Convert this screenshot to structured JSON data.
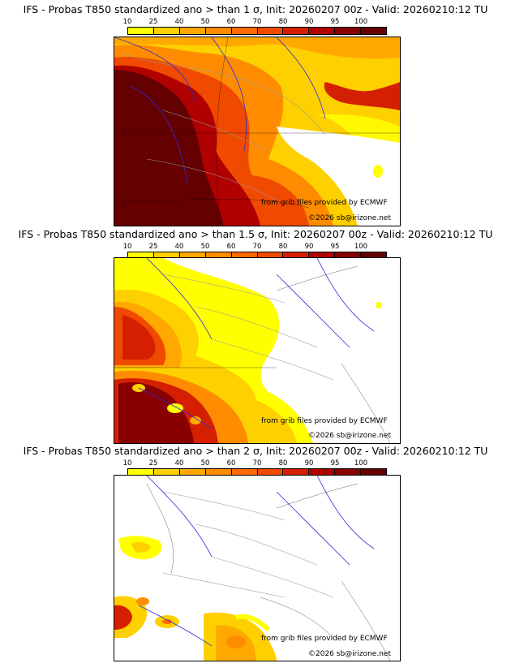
{
  "palette": {
    "bins": [
      "#ffff00",
      "#ffd000",
      "#ffa800",
      "#ff8c00",
      "#ff6a00",
      "#f04a00",
      "#d42000",
      "#b00000",
      "#880000",
      "#650000"
    ],
    "ticks": [
      "10",
      "25",
      "40",
      "50",
      "60",
      "70",
      "80",
      "90",
      "95",
      "100"
    ]
  },
  "panels": [
    {
      "title": "IFS - Probas T850  standardized ano > than 1 σ, Init: 20260207 00z - Valid: 20260210:12 TU",
      "credit": "from grib files provided by ECMWF",
      "copyright": "©2026 sb@irizone.net",
      "threshold_sigma": 1
    },
    {
      "title": "IFS - Probas T850  standardized ano > than 1.5 σ, Init: 20260207 00z - Valid: 20260210:12 TU",
      "credit": "from grib files provided by ECMWF",
      "copyright": "©2026 sb@irizone.net",
      "threshold_sigma": 1.5
    },
    {
      "title": "IFS - Probas T850  standardized ano > than 2 σ, Init: 20260207 00z - Valid: 20260210:12 TU",
      "credit": "from grib files provided by ECMWF",
      "copyright": "©2026 sb@irizone.net",
      "threshold_sigma": 2
    }
  ]
}
